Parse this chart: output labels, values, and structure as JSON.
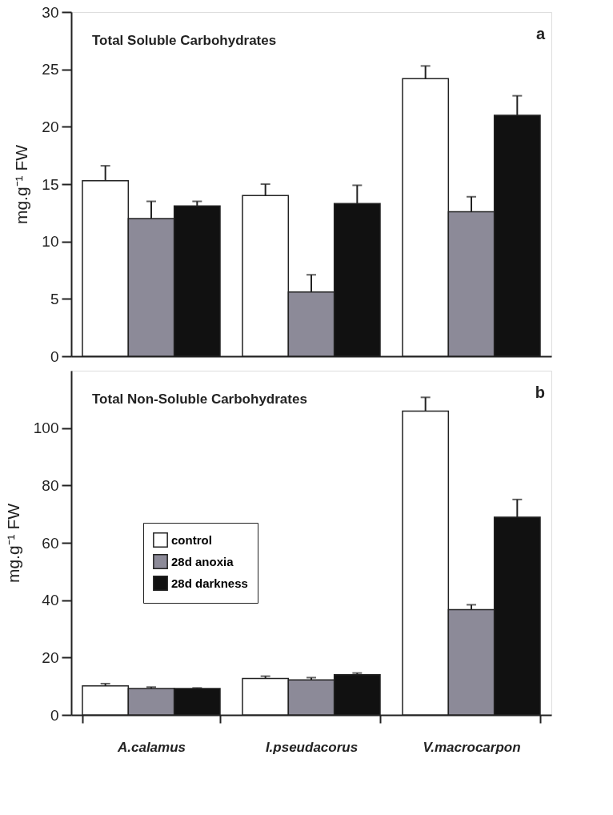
{
  "chart_data": [
    {
      "type": "bar",
      "title": "Total Soluble Carbohydrates",
      "ylabel": "mg.g⁻¹ FW",
      "annotations": [
        "a"
      ],
      "categories": [
        null,
        null,
        null
      ],
      "series": [
        {
          "color": "#ffffff",
          "values": [
            15.3,
            14.0,
            24.2
          ],
          "errors": [
            [
              15.3,
              16.6
            ],
            [
              14.0,
              15.0
            ],
            [
              24.2,
              25.3
            ]
          ]
        },
        {
          "color": "#8c8a98",
          "values": [
            12.0,
            5.6,
            12.6
          ],
          "errors": [
            [
              12.0,
              13.5
            ],
            [
              5.6,
              7.1
            ],
            [
              12.6,
              13.9
            ]
          ]
        },
        {
          "color": "#111111",
          "values": [
            13.1,
            13.3,
            21.0
          ],
          "errors": [
            [
              13.1,
              13.5
            ],
            [
              13.3,
              14.9
            ],
            [
              21.0,
              22.7
            ]
          ]
        }
      ],
      "ylim": [
        0,
        30
      ],
      "yticks": [
        0,
        5,
        10,
        15,
        20,
        25,
        30
      ],
      "tick_labels": "y",
      "grid": false,
      "legend": false
    },
    {
      "type": "bar",
      "title": "Total Non-Soluble Carbohydrates",
      "ylabel": "mg.g⁻¹ FW",
      "annotations": [
        "b"
      ],
      "categories": [
        "A.calamus",
        "I.pseudacorus",
        "V.macrocarpon"
      ],
      "series": [
        {
          "name": "control",
          "color": "#ffffff",
          "values": [
            10.1,
            12.7,
            105.9
          ],
          "errors": [
            [
              10.1,
              10.9
            ],
            [
              12.7,
              13.5
            ],
            [
              105.9,
              110.7
            ]
          ]
        },
        {
          "name": "28d anoxia",
          "color": "#8c8a98",
          "values": [
            9.2,
            12.2,
            36.7
          ],
          "errors": [
            [
              9.2,
              9.7
            ],
            [
              12.2,
              13.0
            ],
            [
              36.7,
              38.4
            ]
          ]
        },
        {
          "name": "28d darkness",
          "color": "#111111",
          "values": [
            9.2,
            14.0,
            68.9
          ],
          "errors": [
            [
              9.2,
              9.4
            ],
            [
              14.0,
              14.6
            ],
            [
              68.9,
              75.1
            ]
          ]
        }
      ],
      "ylim": [
        0,
        120
      ],
      "yticks": [
        0,
        20,
        40,
        60,
        80,
        100
      ],
      "grid": false,
      "legend": "left"
    }
  ]
}
